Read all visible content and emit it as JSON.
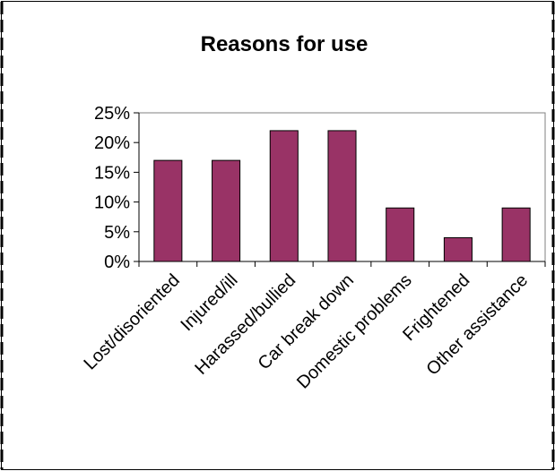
{
  "chart_data": {
    "type": "bar",
    "title": "Reasons for use",
    "categories": [
      "Lost/disoriented",
      "Injured/ill",
      "Harassed/bullied",
      "Car break down",
      "Domestic problems",
      "Frightened",
      "Other assistance"
    ],
    "values": [
      0.17,
      0.17,
      0.22,
      0.22,
      0.09,
      0.04,
      0.09
    ],
    "ylim": [
      0,
      0.25
    ],
    "yticks": [
      "0%",
      "5%",
      "10%",
      "15%",
      "20%",
      "25%"
    ],
    "xlabel": "",
    "ylabel": "",
    "grid": false,
    "legend": "none",
    "bar_color": "#993366"
  }
}
